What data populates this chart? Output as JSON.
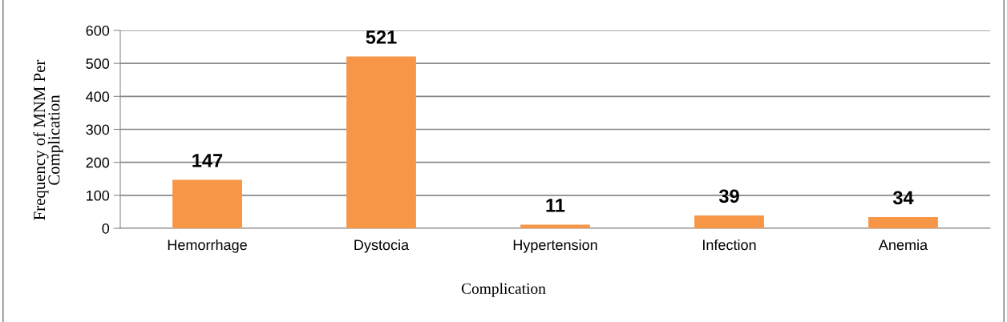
{
  "chart_data": {
    "type": "bar",
    "xlabel": "Complication",
    "ylabel": "Frequency of MNM Per\nComplication",
    "categories": [
      "Hemorrhage",
      "Dystocia",
      "Hypertension",
      "Infection",
      "Anemia"
    ],
    "values": [
      147,
      521,
      11,
      39,
      34
    ],
    "color": "#f79646",
    "ylim": [
      0,
      600
    ],
    "yticks": [
      0,
      100,
      200,
      300,
      400,
      500,
      600
    ],
    "grid": "y",
    "data_labels": true
  }
}
